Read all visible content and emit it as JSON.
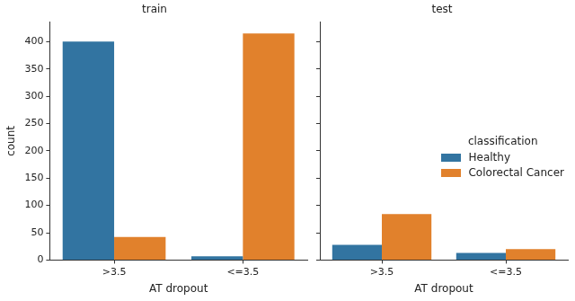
{
  "chart_data": [
    {
      "type": "bar",
      "title": "train",
      "x_label": "AT dropout",
      "y_label": "count",
      "categories": [
        ">3.5",
        "<=3.5"
      ],
      "series": [
        {
          "name": "Healthy",
          "color": "#3274a1",
          "values": [
            400,
            7
          ]
        },
        {
          "name": "Colorectal Cancer",
          "color": "#e1812c",
          "values": [
            42,
            415
          ]
        }
      ],
      "ylim": [
        0,
        436
      ],
      "yticks": [
        0,
        50,
        100,
        150,
        200,
        250,
        300,
        350,
        400
      ],
      "grid": false
    },
    {
      "type": "bar",
      "title": "test",
      "x_label": "AT dropout",
      "categories": [
        ">3.5",
        "<=3.5"
      ],
      "series": [
        {
          "name": "Healthy",
          "color": "#3274a1",
          "values": [
            28,
            13
          ]
        },
        {
          "name": "Colorectal Cancer",
          "color": "#e1812c",
          "values": [
            84,
            20
          ]
        }
      ],
      "ylim": [
        0,
        436
      ],
      "yticks": [
        0,
        50,
        100,
        150,
        200,
        250,
        300,
        350,
        400
      ],
      "grid": false,
      "tick_labels": "x",
      "legend": "right",
      "legend_title": "classification"
    }
  ]
}
